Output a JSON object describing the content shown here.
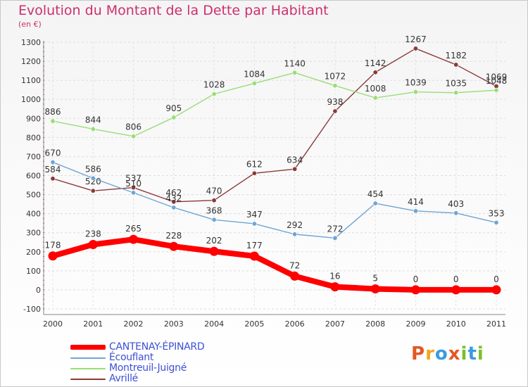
{
  "title": "Evolution du Montant de la Dette par Habitant",
  "unit_label": "(en €)",
  "logo": {
    "text": "Proxiti",
    "letters": [
      {
        "ch": "P",
        "color": "#e25822"
      },
      {
        "ch": "r",
        "color": "#f2a81d"
      },
      {
        "ch": "o",
        "color": "#3a9be0"
      },
      {
        "ch": "x",
        "color": "#e25822"
      },
      {
        "ch": "i",
        "color": "#7bbf2a"
      },
      {
        "ch": "t",
        "color": "#3a9be0"
      },
      {
        "ch": "i",
        "color": "#7bbf2a"
      }
    ]
  },
  "chart_data": {
    "type": "line",
    "title": "Evolution du Montant de la Dette par Habitant",
    "ylabel": "(en €)",
    "xlabel": "",
    "x": [
      "2000",
      "2001",
      "2002",
      "2003",
      "2004",
      "2005",
      "2006",
      "2007",
      "2008",
      "2009",
      "2010",
      "2011"
    ],
    "ylim": [
      -100,
      1300
    ],
    "yticks": [
      -100,
      0,
      100,
      200,
      300,
      400,
      500,
      600,
      700,
      800,
      900,
      1000,
      1100,
      1200,
      1300
    ],
    "grid": true,
    "legend_position": "bottom-left",
    "series": [
      {
        "name": "CANTENAY-ÉPINARD",
        "color": "#ff0000",
        "values": [
          178,
          238,
          265,
          228,
          202,
          177,
          72,
          16,
          5,
          0,
          0,
          0
        ]
      },
      {
        "name": "Écouflant",
        "color": "#6ea5d4",
        "values": [
          670,
          586,
          510,
          432,
          368,
          347,
          292,
          272,
          454,
          414,
          403,
          353
        ]
      },
      {
        "name": "Montreuil-Juigné",
        "color": "#99dd77",
        "values": [
          886,
          844,
          806,
          905,
          1028,
          1084,
          1140,
          1072,
          1008,
          1039,
          1035,
          1048
        ]
      },
      {
        "name": "Avrillé",
        "color": "#8b3a3a",
        "values": [
          584,
          520,
          537,
          462,
          470,
          612,
          634,
          938,
          1142,
          1267,
          1182,
          1069
        ]
      }
    ]
  }
}
